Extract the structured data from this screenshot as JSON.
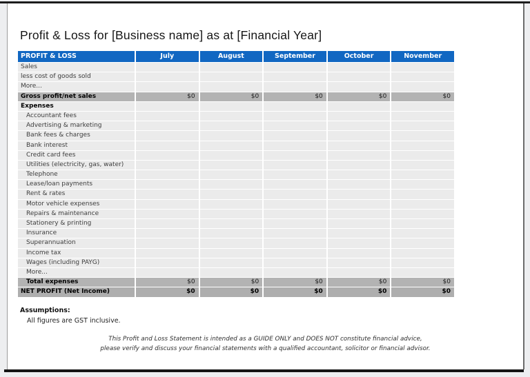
{
  "page": {
    "title": "Profit & Loss for [Business name] as at [Financial Year]"
  },
  "table": {
    "header": {
      "label": "PROFIT & LOSS",
      "months": [
        "July",
        "August",
        "September",
        "October",
        "November"
      ]
    },
    "rows": [
      {
        "label": "Sales",
        "type": "normal",
        "indent": 0,
        "values": [
          "",
          "",
          "",
          "",
          ""
        ]
      },
      {
        "label": "less cost of goods sold",
        "type": "normal",
        "indent": 0,
        "values": [
          "",
          "",
          "",
          "",
          ""
        ]
      },
      {
        "label": "More...",
        "type": "normal",
        "indent": 0,
        "values": [
          "",
          "",
          "",
          "",
          ""
        ]
      },
      {
        "label": "Gross profit/net sales",
        "type": "subtotal",
        "indent": 0,
        "values": [
          "$0",
          "$0",
          "$0",
          "$0",
          "$0"
        ]
      },
      {
        "label": "Expenses",
        "type": "section",
        "indent": 0,
        "values": [
          "",
          "",
          "",
          "",
          ""
        ]
      },
      {
        "label": "Accountant fees",
        "type": "normal",
        "indent": 1,
        "values": [
          "",
          "",
          "",
          "",
          ""
        ]
      },
      {
        "label": "Advertising & marketing",
        "type": "normal",
        "indent": 1,
        "values": [
          "",
          "",
          "",
          "",
          ""
        ]
      },
      {
        "label": "Bank fees & charges",
        "type": "normal",
        "indent": 1,
        "values": [
          "",
          "",
          "",
          "",
          ""
        ]
      },
      {
        "label": "Bank interest",
        "type": "normal",
        "indent": 1,
        "values": [
          "",
          "",
          "",
          "",
          ""
        ]
      },
      {
        "label": "Credit card fees",
        "type": "normal",
        "indent": 1,
        "values": [
          "",
          "",
          "",
          "",
          ""
        ]
      },
      {
        "label": "Utilities (electricity, gas, water)",
        "type": "normal",
        "indent": 1,
        "values": [
          "",
          "",
          "",
          "",
          ""
        ]
      },
      {
        "label": "Telephone",
        "type": "normal",
        "indent": 1,
        "values": [
          "",
          "",
          "",
          "",
          ""
        ]
      },
      {
        "label": "Lease/loan payments",
        "type": "normal",
        "indent": 1,
        "values": [
          "",
          "",
          "",
          "",
          ""
        ]
      },
      {
        "label": "Rent & rates",
        "type": "normal",
        "indent": 1,
        "values": [
          "",
          "",
          "",
          "",
          ""
        ]
      },
      {
        "label": "Motor vehicle expenses",
        "type": "normal",
        "indent": 1,
        "values": [
          "",
          "",
          "",
          "",
          ""
        ]
      },
      {
        "label": "Repairs & maintenance",
        "type": "normal",
        "indent": 1,
        "values": [
          "",
          "",
          "",
          "",
          ""
        ]
      },
      {
        "label": "Stationery & printing",
        "type": "normal",
        "indent": 1,
        "values": [
          "",
          "",
          "",
          "",
          ""
        ]
      },
      {
        "label": "Insurance",
        "type": "normal",
        "indent": 1,
        "values": [
          "",
          "",
          "",
          "",
          ""
        ]
      },
      {
        "label": "Superannuation",
        "type": "normal",
        "indent": 1,
        "values": [
          "",
          "",
          "",
          "",
          ""
        ]
      },
      {
        "label": "Income tax",
        "type": "normal",
        "indent": 1,
        "values": [
          "",
          "",
          "",
          "",
          ""
        ]
      },
      {
        "label": "Wages (including PAYG)",
        "type": "normal",
        "indent": 1,
        "values": [
          "",
          "",
          "",
          "",
          ""
        ]
      },
      {
        "label": "More...",
        "type": "normal",
        "indent": 1,
        "values": [
          "",
          "",
          "",
          "",
          ""
        ]
      },
      {
        "label": "Total expenses",
        "type": "subtotal",
        "indent": 1,
        "values": [
          "$0",
          "$0",
          "$0",
          "$0",
          "$0"
        ]
      },
      {
        "label": "NET PROFIT (Net Income)",
        "type": "total",
        "indent": 0,
        "values": [
          "$0",
          "$0",
          "$0",
          "$0",
          "$0"
        ]
      }
    ]
  },
  "assumptions": {
    "heading": "Assumptions:",
    "note": "All figures are GST inclusive."
  },
  "disclaimer": {
    "line1": "This Profit and Loss Statement is intended as a GUIDE ONLY and DOES NOT constitute financial advice,",
    "line2": "please verify and discuss your financial statements with a qualified accountant, solicitor or financial advisor."
  },
  "colors": {
    "header_blue": "#1167c2",
    "row_light_gray": "#ebebeb",
    "row_medium_gray": "#b3b3b3",
    "frame_black": "#1c1c1c",
    "page_white": "#ffffff"
  }
}
